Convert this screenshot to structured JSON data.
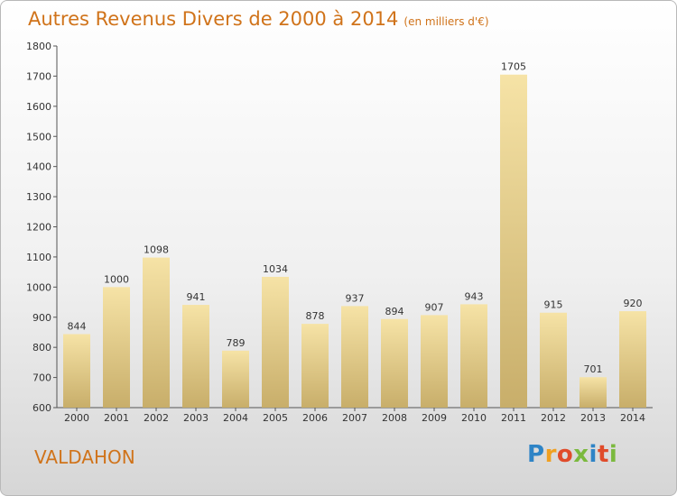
{
  "header": {
    "title": "Autres Revenus Divers de 2000 à 2014",
    "subtitle": "(en milliers d'€)"
  },
  "footer": {
    "city": "VALDAHON",
    "logo_text": "Proxiti"
  },
  "chart_data": {
    "type": "bar",
    "title": "Autres Revenus Divers de 2000 à 2014",
    "subtitle": "(en milliers d'€)",
    "xlabel": "",
    "ylabel": "",
    "categories": [
      "2000",
      "2001",
      "2002",
      "2003",
      "2004",
      "2005",
      "2006",
      "2007",
      "2008",
      "2009",
      "2010",
      "2011",
      "2012",
      "2013",
      "2014"
    ],
    "values": [
      844,
      1000,
      1098,
      941,
      789,
      1034,
      878,
      937,
      894,
      907,
      943,
      1705,
      915,
      701,
      920
    ],
    "ylim": [
      600,
      1800
    ],
    "yticks": [
      600,
      700,
      800,
      900,
      1000,
      1100,
      1200,
      1300,
      1400,
      1500,
      1600,
      1700,
      1800
    ],
    "grid": false,
    "legend": "none",
    "colors": {
      "bar_light": "#f6e3a6",
      "bar_dark": "#c8ae6a",
      "title": "#d0731a"
    }
  }
}
